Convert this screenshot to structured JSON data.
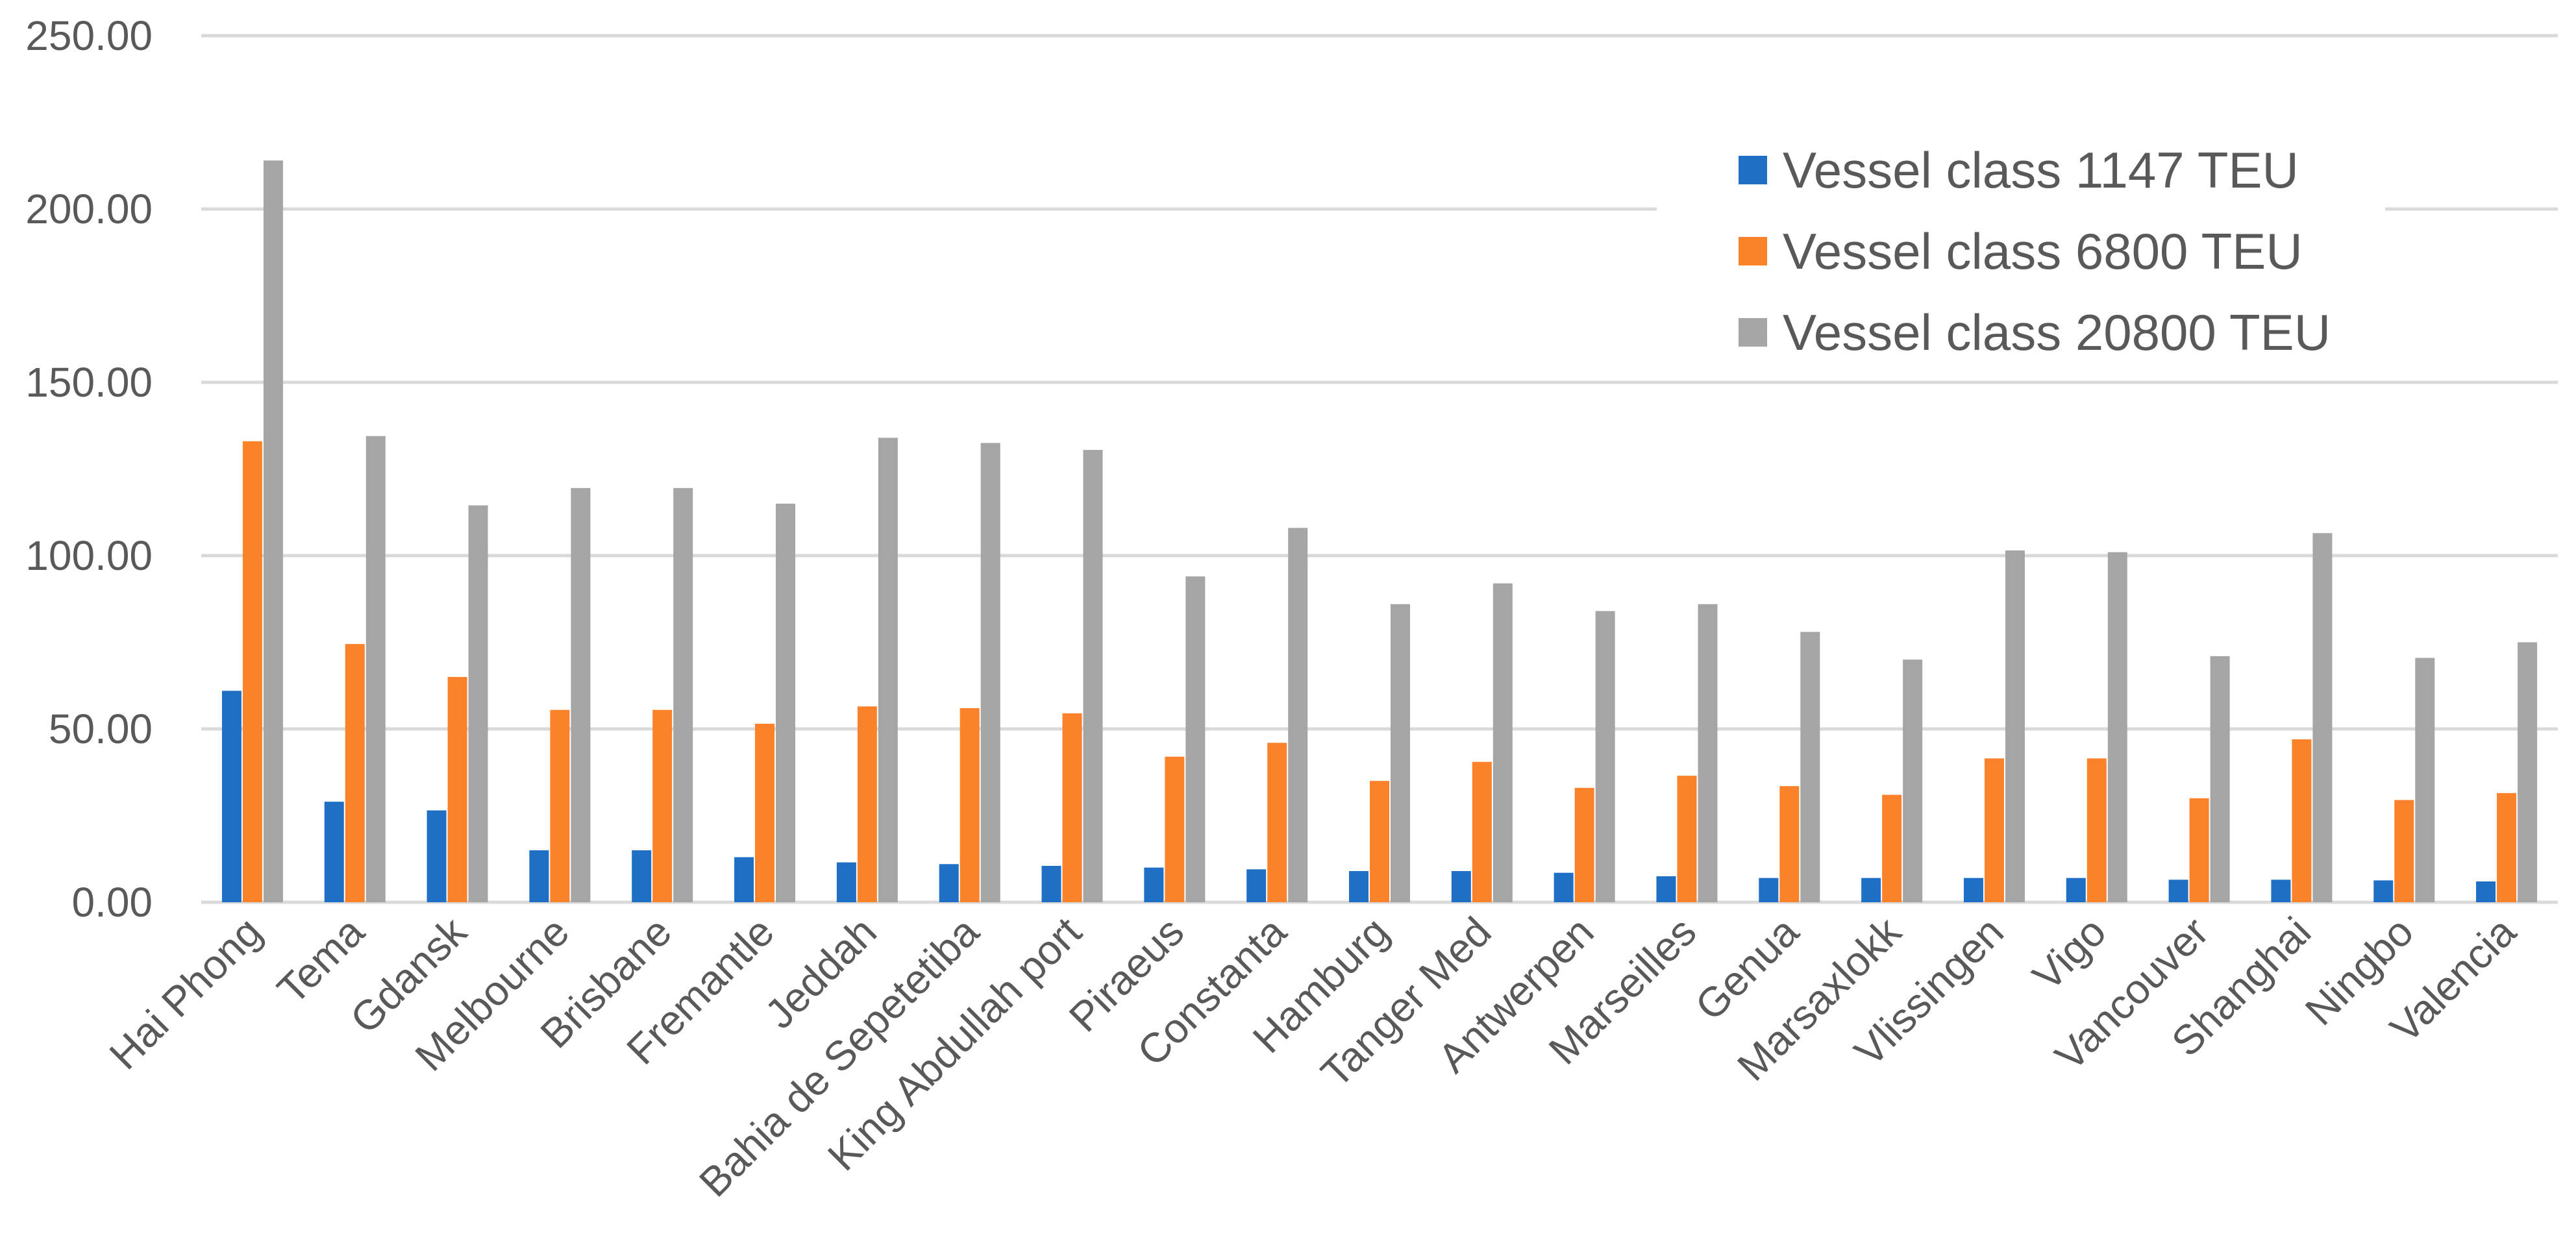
{
  "chart_data": {
    "type": "bar",
    "title": "",
    "xlabel": "",
    "ylabel": "",
    "ylim": [
      0,
      250
    ],
    "yticks": [
      0,
      50,
      100,
      150,
      200,
      250
    ],
    "ytick_labels": [
      "0.00",
      "50.00",
      "100.00",
      "150.00",
      "200.00",
      "250.00"
    ],
    "grid": true,
    "legend_position": "top-right",
    "categories": [
      "Hai Phong",
      "Tema",
      "Gdansk",
      "Melbourne",
      "Brisbane",
      "Fremantle",
      "Jeddah",
      "Bahia de Sepetetiba",
      "King Abdullah port",
      "Piraeus",
      "Constanta",
      "Hamburg",
      "Tanger Med",
      "Antwerpen",
      "Marseilles",
      "Genua",
      "Marsaxlokk",
      "Vlissingen",
      "Vigo",
      "Vancouver",
      "Shanghai",
      "Ningbo",
      "Valencia"
    ],
    "series": [
      {
        "name": "Vessel class 1147 TEU",
        "color": "#1f6fc5",
        "values": [
          61,
          29,
          26.5,
          15,
          15,
          13,
          11.5,
          11,
          10.5,
          10,
          9.5,
          9,
          9,
          8.5,
          7.5,
          7,
          7,
          7,
          7,
          6.5,
          6.5,
          6.3,
          6
        ]
      },
      {
        "name": "Vessel class 6800 TEU",
        "color": "#fb822b",
        "values": [
          133,
          74.5,
          65,
          55.5,
          55.5,
          51.5,
          56.5,
          56,
          54.5,
          42,
          46,
          35,
          40.5,
          33,
          36.5,
          33.5,
          31,
          41.5,
          41.5,
          30,
          47,
          29.5,
          31.5
        ]
      },
      {
        "name": "Vessel class 20800 TEU",
        "color": "#a5a5a5",
        "values": [
          214,
          134.5,
          114.5,
          119.5,
          119.5,
          115,
          134,
          132.5,
          130.5,
          94,
          108,
          86,
          92,
          84,
          86,
          78,
          70,
          101.5,
          101,
          71,
          106.5,
          70.5,
          75
        ]
      }
    ]
  }
}
